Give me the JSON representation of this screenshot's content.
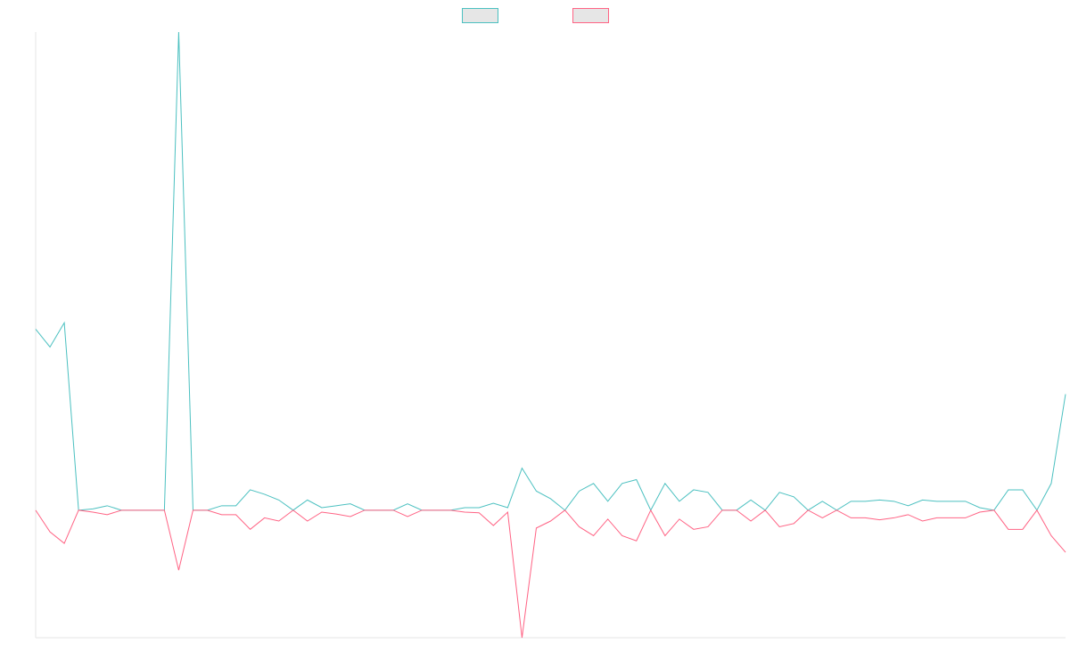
{
  "chart_data": {
    "type": "line",
    "ylim": [
      -100,
      375
    ],
    "series": [
      {
        "color": "#4bc0c0",
        "values": [
          142,
          128,
          147,
          0,
          1,
          3.5,
          0,
          0,
          0,
          0,
          375,
          0,
          0,
          3.5,
          3.5,
          16,
          12.5,
          8,
          0,
          8,
          2,
          3.5,
          5,
          0,
          0,
          0,
          5,
          0,
          0,
          0,
          2,
          2,
          5.5,
          2,
          33,
          15,
          9,
          0,
          15,
          21,
          7,
          21,
          24,
          0,
          21,
          7,
          16,
          14,
          0,
          0,
          8,
          0,
          14,
          10.5,
          0,
          7,
          0,
          7,
          7,
          8,
          7,
          3.5,
          8,
          7,
          7,
          7,
          2,
          0,
          16,
          16,
          0,
          21,
          91
        ]
      },
      {
        "color": "#ff6384",
        "values": [
          0,
          -17,
          -26,
          0,
          -1.5,
          -3.5,
          0,
          0,
          0,
          0,
          -47,
          0,
          0,
          -3.5,
          -3.5,
          -15,
          -6,
          -8.5,
          0,
          -8.5,
          -1.5,
          -3,
          -5,
          0,
          0,
          0,
          -5,
          0,
          0,
          0,
          -1.5,
          -2,
          -12,
          -1.5,
          -100,
          -14,
          -8.5,
          0,
          -13,
          -20,
          -7,
          -20,
          -24,
          0,
          -20,
          -7,
          -15,
          -13,
          0,
          0,
          -8.5,
          0,
          -13,
          -10.5,
          0,
          -6,
          0,
          -6,
          -6,
          -7.5,
          -6,
          -3.5,
          -8.5,
          -6,
          -6,
          -6,
          -1.5,
          0,
          -15,
          -15,
          0,
          -20,
          -33
        ]
      }
    ]
  }
}
